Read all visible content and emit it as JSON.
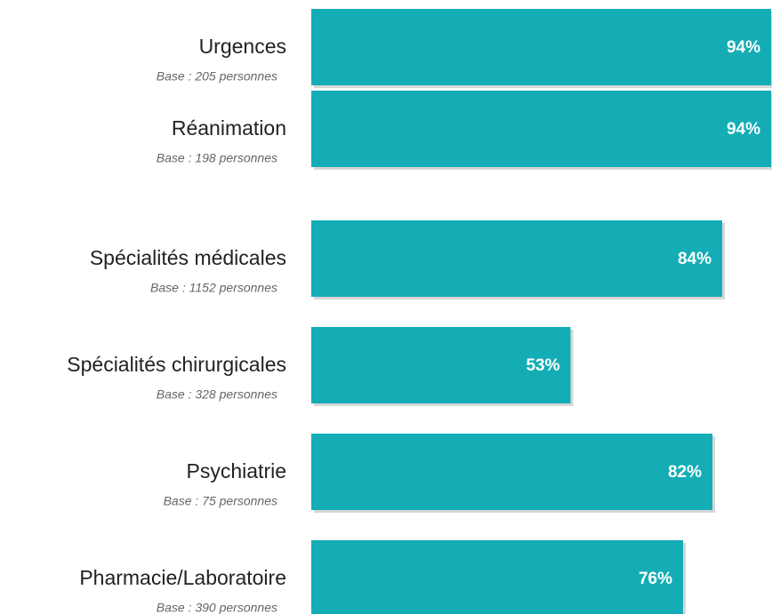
{
  "chart_data": {
    "type": "hbar",
    "categories": [
      "Urgences",
      "Réanimation",
      "Spécialités médicales",
      "Spécialités chirurgicales",
      "Psychiatrie",
      "Pharmacie/Laboratoire"
    ],
    "subtitles": [
      "Base : 205 personnes",
      "Base : 198 personnes",
      "Base : 1152 personnes",
      "Base : 328 personnes",
      "Base : 75 personnes",
      "Base : 390 personnes"
    ],
    "values": [
      94,
      94,
      84,
      53,
      82,
      76
    ],
    "value_labels": [
      "94%",
      "94%",
      "84%",
      "53%",
      "82%",
      "76%"
    ],
    "color": "#14adb5"
  }
}
